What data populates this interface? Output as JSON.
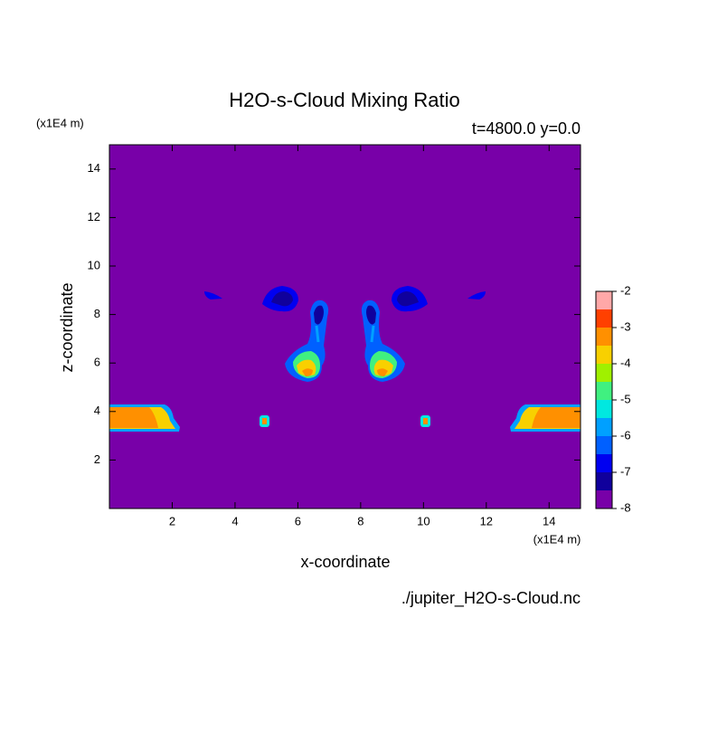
{
  "chart_data": {
    "type": "contour",
    "title": "H2O-s-Cloud Mixing Ratio",
    "subtitle": "t=4800.0 y=0.0",
    "x_label": "x-coordinate",
    "y_label": "z-coordinate",
    "x_unit": "(x1E4 m)",
    "y_unit": "(x1E4 m)",
    "source": "./jupiter_H2O-s-Cloud.nc",
    "xlim": [
      0,
      15
    ],
    "xticks": [
      2,
      4,
      6,
      8,
      10,
      12,
      14
    ],
    "ylim": [
      0,
      15
    ],
    "yticks": [
      2,
      4,
      6,
      8,
      10,
      12,
      14
    ],
    "colorbar": {
      "lim": [
        -8,
        -2
      ],
      "ticks": [
        -8,
        -7,
        -6,
        -5,
        -4,
        -3,
        -2
      ],
      "colors": [
        "#7800a8",
        "#10009c",
        "#0000f0",
        "#0060ff",
        "#00a0ff",
        "#00e8e0",
        "#40f080",
        "#a0f000",
        "#f8d000",
        "#ff9000",
        "#ff4000",
        "#ffa8a8"
      ]
    }
  }
}
